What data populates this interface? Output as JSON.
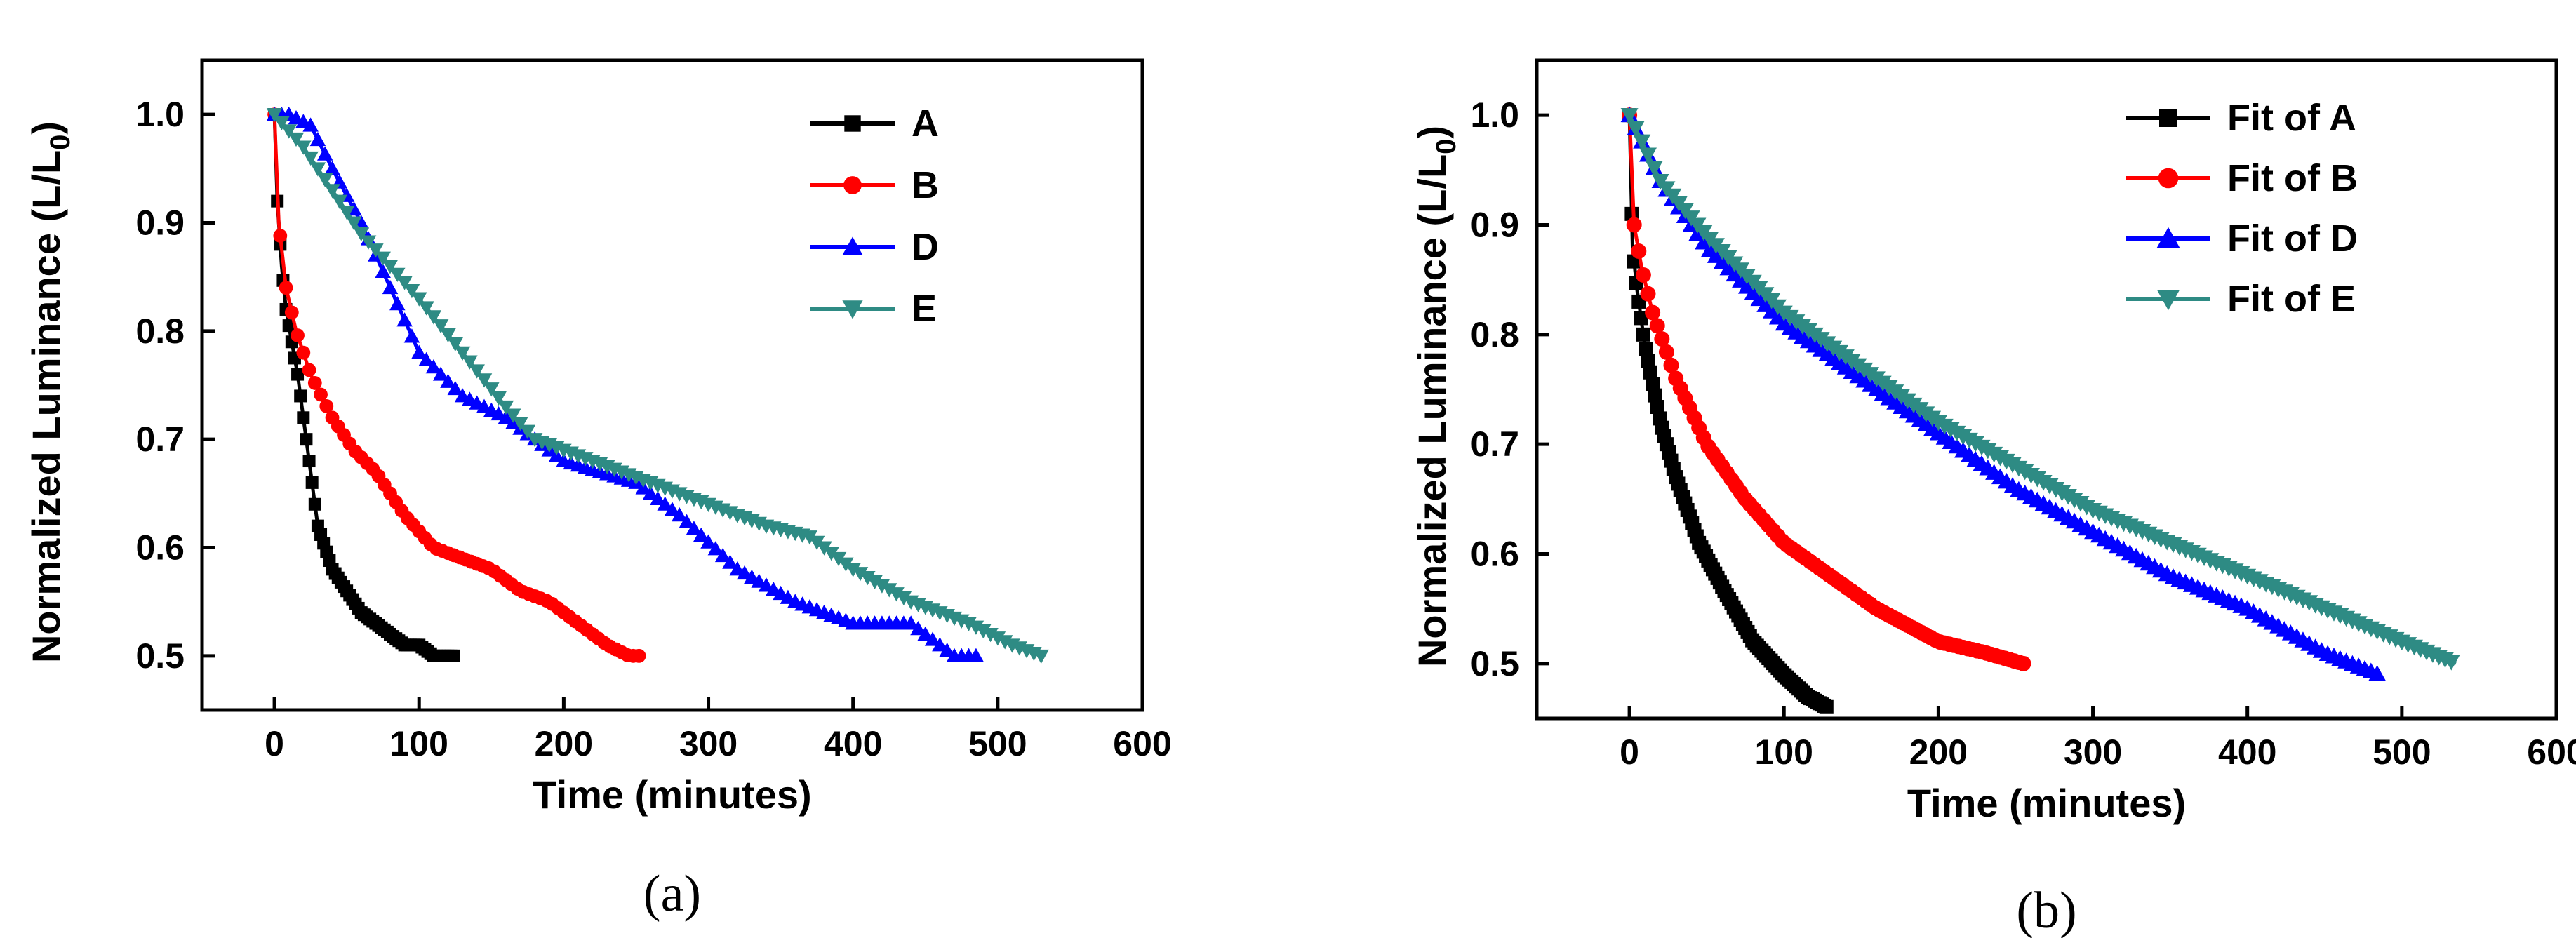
{
  "chart_data": [
    {
      "type": "line",
      "panel": "(a)",
      "xlabel": "Time (minutes)",
      "ylabel_main": "Normalized Luminance (L/L",
      "ylabel_sub": "0",
      "ylabel_close": ")",
      "xlim": [
        -50,
        600
      ],
      "ylim": [
        0.45,
        1.05
      ],
      "xticks": [
        0,
        100,
        200,
        300,
        400,
        500,
        600
      ],
      "yticks": [
        0.5,
        0.6,
        0.7,
        0.8,
        0.9,
        1.0
      ],
      "xtick_labels": [
        "0",
        "100",
        "200",
        "300",
        "400",
        "500",
        "600"
      ],
      "ytick_labels": [
        "0.5",
        "0.6",
        "0.7",
        "0.8",
        "0.9",
        "1.0"
      ],
      "legend_position": "top-right",
      "series": [
        {
          "name": "A",
          "color": "#000000",
          "marker": "square",
          "step": 2,
          "x": [
            0,
            2,
            5,
            8,
            12,
            16,
            20,
            25,
            30,
            35,
            40,
            50,
            60,
            70,
            80,
            90,
            100,
            110,
            125
          ],
          "y": [
            1.0,
            0.92,
            0.86,
            0.82,
            0.79,
            0.76,
            0.72,
            0.67,
            0.62,
            0.6,
            0.58,
            0.56,
            0.54,
            0.53,
            0.52,
            0.51,
            0.51,
            0.5,
            0.5
          ]
        },
        {
          "name": "B",
          "color": "#ff0000",
          "marker": "circle",
          "step": 4,
          "x": [
            0,
            3,
            8,
            15,
            25,
            40,
            55,
            70,
            90,
            110,
            130,
            150,
            170,
            190,
            210,
            230,
            245,
            255
          ],
          "y": [
            1.0,
            0.9,
            0.84,
            0.8,
            0.76,
            0.72,
            0.69,
            0.67,
            0.63,
            0.6,
            0.59,
            0.58,
            0.56,
            0.55,
            0.53,
            0.51,
            0.5,
            0.5
          ]
        },
        {
          "name": "D",
          "color": "#0000ff",
          "marker": "triangle-up",
          "step": 5,
          "x": [
            0,
            10,
            25,
            40,
            60,
            80,
            100,
            130,
            160,
            200,
            250,
            280,
            320,
            360,
            400,
            440,
            470,
            485
          ],
          "y": [
            1.0,
            1.0,
            0.99,
            0.95,
            0.9,
            0.84,
            0.78,
            0.74,
            0.72,
            0.68,
            0.66,
            0.63,
            0.58,
            0.55,
            0.53,
            0.53,
            0.5,
            0.5
          ]
        },
        {
          "name": "E",
          "color": "#2e8b84",
          "marker": "triangle-down",
          "step": 5,
          "x": [
            0,
            20,
            40,
            60,
            80,
            100,
            130,
            160,
            180,
            220,
            260,
            300,
            340,
            370,
            400,
            440,
            480,
            510,
            530
          ],
          "y": [
            1.0,
            0.97,
            0.93,
            0.89,
            0.86,
            0.83,
            0.78,
            0.73,
            0.7,
            0.68,
            0.66,
            0.64,
            0.62,
            0.61,
            0.58,
            0.55,
            0.53,
            0.51,
            0.5
          ]
        }
      ]
    },
    {
      "type": "line",
      "panel": "(b)",
      "xlabel": "Time (minutes)",
      "ylabel_main": "Normalized Luminance (L/L",
      "ylabel_sub": "0",
      "ylabel_close": ")",
      "xlim": [
        -60,
        600
      ],
      "ylim": [
        0.45,
        1.05
      ],
      "xticks": [
        0,
        100,
        200,
        300,
        400,
        500,
        600
      ],
      "yticks": [
        0.5,
        0.6,
        0.7,
        0.8,
        0.9,
        1.0
      ],
      "xtick_labels": [
        "0",
        "100",
        "200",
        "300",
        "400",
        "500",
        "600"
      ],
      "ytick_labels": [
        "0.5",
        "0.6",
        "0.7",
        "0.8",
        "0.9",
        "1.0"
      ],
      "legend_position": "top-right",
      "series": [
        {
          "name": "Fit of A",
          "color": "#000000",
          "marker": "square",
          "step": 1.5,
          "x": [
            0,
            2,
            5,
            10,
            20,
            30,
            45,
            60,
            80,
            100,
            115,
            128
          ],
          "y": [
            1.0,
            0.88,
            0.84,
            0.79,
            0.72,
            0.67,
            0.61,
            0.57,
            0.52,
            0.49,
            0.47,
            0.46
          ]
        },
        {
          "name": "Fit of B",
          "color": "#ff0000",
          "marker": "circle",
          "step": 3,
          "x": [
            0,
            3,
            8,
            15,
            30,
            50,
            75,
            100,
            130,
            160,
            200,
            230,
            255
          ],
          "y": [
            1.0,
            0.9,
            0.86,
            0.82,
            0.76,
            0.7,
            0.65,
            0.61,
            0.58,
            0.55,
            0.52,
            0.51,
            0.5
          ]
        },
        {
          "name": "Fit of D",
          "color": "#0000ff",
          "marker": "triangle-up",
          "step": 4,
          "x": [
            0,
            20,
            50,
            100,
            150,
            200,
            250,
            300,
            350,
            400,
            450,
            485
          ],
          "y": [
            1.0,
            0.94,
            0.88,
            0.81,
            0.76,
            0.71,
            0.66,
            0.62,
            0.58,
            0.55,
            0.51,
            0.49
          ]
        },
        {
          "name": "Fit of E",
          "color": "#2e8b84",
          "marker": "triangle-down",
          "step": 4,
          "x": [
            0,
            20,
            50,
            100,
            150,
            200,
            250,
            300,
            350,
            400,
            450,
            500,
            535
          ],
          "y": [
            1.0,
            0.94,
            0.89,
            0.82,
            0.77,
            0.72,
            0.68,
            0.64,
            0.61,
            0.58,
            0.55,
            0.52,
            0.5
          ]
        }
      ]
    }
  ]
}
